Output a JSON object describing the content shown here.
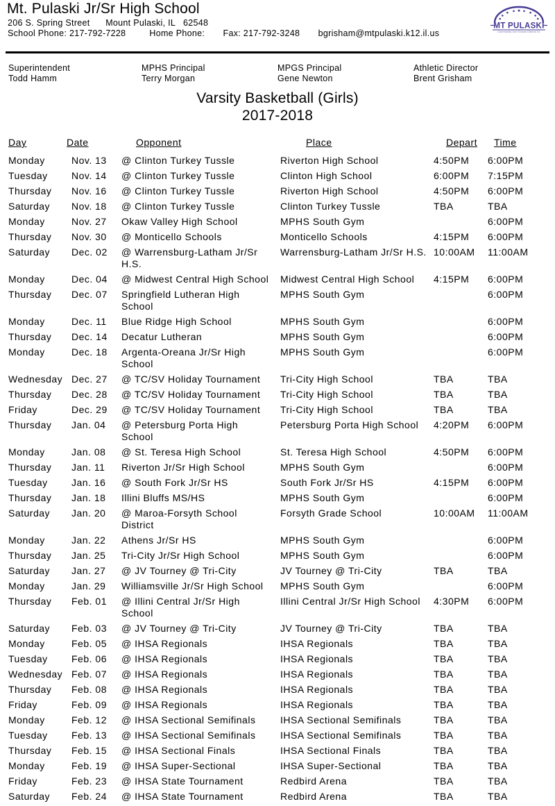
{
  "school": {
    "name": "Mt. Pulaski Jr/Sr High School",
    "address_line": "206 S. Spring Street      Mount Pulaski, IL   62548",
    "contact_line": "School Phone: 217-792-7228         Home Phone:       Fax: 217-792-3248       bgrisham@mtpulaski.k12.il.us",
    "logo": {
      "text": "MT PULASKI",
      "subtext": "Community Unit School District 23",
      "color": "#453a93"
    }
  },
  "staff": [
    {
      "title": "Superintendent",
      "name": "Todd Hamm"
    },
    {
      "title": "MPHS Principal",
      "name": "Terry Morgan"
    },
    {
      "title": "MPGS Principal",
      "name": "Gene Newton"
    },
    {
      "title": "Athletic Director",
      "name": "Brent Grisham"
    }
  ],
  "schedule": {
    "title": "Varsity Basketball (Girls)",
    "season": "2017-2018",
    "columns": [
      "Day",
      "Date",
      "Opponent",
      "Place",
      "Depart",
      "Time"
    ],
    "rows": [
      {
        "day": "Monday",
        "date": "Nov. 13",
        "opponent": "@ Clinton Turkey Tussle",
        "place": "Riverton High School",
        "depart": "4:50PM",
        "time": "6:00PM"
      },
      {
        "day": "Tuesday",
        "date": "Nov. 14",
        "opponent": "@ Clinton Turkey Tussle",
        "place": "Clinton High School",
        "depart": "6:00PM",
        "time": "7:15PM"
      },
      {
        "day": "Thursday",
        "date": "Nov. 16",
        "opponent": "@ Clinton Turkey Tussle",
        "place": "Riverton High School",
        "depart": "4:50PM",
        "time": "6:00PM"
      },
      {
        "day": "Saturday",
        "date": "Nov. 18",
        "opponent": "@ Clinton Turkey Tussle",
        "place": "Clinton Turkey Tussle",
        "depart": "TBA",
        "time": "TBA"
      },
      {
        "day": "Monday",
        "date": "Nov. 27",
        "opponent": "Okaw Valley High School",
        "place": "MPHS South Gym",
        "depart": "",
        "time": "6:00PM"
      },
      {
        "day": "Thursday",
        "date": "Nov. 30",
        "opponent": "@ Monticello Schools",
        "place": "Monticello Schools",
        "depart": "4:15PM",
        "time": "6:00PM"
      },
      {
        "day": "Saturday",
        "date": "Dec. 02",
        "opponent": "@ Warrensburg-Latham Jr/Sr\nH.S.",
        "place": "Warrensburg-Latham Jr/Sr H.S.",
        "depart": "10:00AM",
        "time": "11:00AM"
      },
      {
        "day": "Monday",
        "date": "Dec. 04",
        "opponent": "@ Midwest Central High School",
        "place": "Midwest Central High School",
        "depart": "4:15PM",
        "time": "6:00PM"
      },
      {
        "day": "Thursday",
        "date": "Dec. 07",
        "opponent": "Springfield Lutheran High\nSchool",
        "place": "MPHS South Gym",
        "depart": "",
        "time": "6:00PM"
      },
      {
        "day": "Monday",
        "date": "Dec. 11",
        "opponent": "Blue Ridge High School",
        "place": "MPHS South Gym",
        "depart": "",
        "time": "6:00PM"
      },
      {
        "day": "Thursday",
        "date": "Dec. 14",
        "opponent": "Decatur Lutheran",
        "place": "MPHS South Gym",
        "depart": "",
        "time": "6:00PM"
      },
      {
        "day": "Monday",
        "date": "Dec. 18",
        "opponent": "Argenta-Oreana Jr/Sr High\nSchool",
        "place": "MPHS South Gym",
        "depart": "",
        "time": "6:00PM"
      },
      {
        "day": "Wednesday",
        "date": "Dec. 27",
        "opponent": "@ TC/SV Holiday Tournament",
        "place": "Tri-City High School",
        "depart": "TBA",
        "time": "TBA"
      },
      {
        "day": "Thursday",
        "date": "Dec. 28",
        "opponent": "@ TC/SV Holiday Tournament",
        "place": "Tri-City High School",
        "depart": "TBA",
        "time": "TBA"
      },
      {
        "day": "Friday",
        "date": "Dec. 29",
        "opponent": "@ TC/SV Holiday Tournament",
        "place": "Tri-City High School",
        "depart": "TBA",
        "time": "TBA"
      },
      {
        "day": "Thursday",
        "date": "Jan. 04",
        "opponent": "@ Petersburg Porta High\nSchool",
        "place": "Petersburg Porta High School",
        "depart": "4:20PM",
        "time": "6:00PM"
      },
      {
        "day": "Monday",
        "date": "Jan. 08",
        "opponent": "@ St. Teresa High School",
        "place": "St. Teresa High School",
        "depart": "4:50PM",
        "time": "6:00PM"
      },
      {
        "day": "Thursday",
        "date": "Jan. 11",
        "opponent": "Riverton Jr/Sr High School",
        "place": "MPHS South Gym",
        "depart": "",
        "time": "6:00PM"
      },
      {
        "day": "Tuesday",
        "date": "Jan. 16",
        "opponent": "@ South Fork Jr/Sr HS",
        "place": "South Fork Jr/Sr HS",
        "depart": "4:15PM",
        "time": "6:00PM"
      },
      {
        "day": "Thursday",
        "date": "Jan. 18",
        "opponent": "Illini Bluffs MS/HS",
        "place": "MPHS South Gym",
        "depart": "",
        "time": "6:00PM"
      },
      {
        "day": "Saturday",
        "date": "Jan. 20",
        "opponent": "@ Maroa-Forsyth School\nDistrict",
        "place": "Forsyth Grade School",
        "depart": "10:00AM",
        "time": "11:00AM"
      },
      {
        "day": "Monday",
        "date": "Jan. 22",
        "opponent": "Athens Jr/Sr HS",
        "place": "MPHS South Gym",
        "depart": "",
        "time": "6:00PM"
      },
      {
        "day": "Thursday",
        "date": "Jan. 25",
        "opponent": "Tri-City Jr/Sr High School",
        "place": "MPHS South Gym",
        "depart": "",
        "time": "6:00PM"
      },
      {
        "day": "Saturday",
        "date": "Jan. 27",
        "opponent": "@ JV Tourney @ Tri-City",
        "place": "JV Tourney @ Tri-City",
        "depart": "TBA",
        "time": "TBA"
      },
      {
        "day": "Monday",
        "date": "Jan. 29",
        "opponent": "Williamsville Jr/Sr High School",
        "place": "MPHS South Gym",
        "depart": "",
        "time": "6:00PM"
      },
      {
        "day": "Thursday",
        "date": "Feb. 01",
        "opponent": "@ Illini Central Jr/Sr High\nSchool",
        "place": "Illini Central Jr/Sr High School",
        "depart": "4:30PM",
        "time": "6:00PM"
      },
      {
        "day": "Saturday",
        "date": "Feb. 03",
        "opponent": "@ JV Tourney @ Tri-City",
        "place": "JV Tourney @ Tri-City",
        "depart": "TBA",
        "time": "TBA"
      },
      {
        "day": "Monday",
        "date": "Feb. 05",
        "opponent": "@ IHSA Regionals",
        "place": "IHSA Regionals",
        "depart": "TBA",
        "time": "TBA"
      },
      {
        "day": "Tuesday",
        "date": "Feb. 06",
        "opponent": "@ IHSA Regionals",
        "place": "IHSA Regionals",
        "depart": "TBA",
        "time": "TBA"
      },
      {
        "day": "Wednesday",
        "date": "Feb. 07",
        "opponent": "@ IHSA Regionals",
        "place": "IHSA Regionals",
        "depart": "TBA",
        "time": "TBA"
      },
      {
        "day": "Thursday",
        "date": "Feb. 08",
        "opponent": "@ IHSA Regionals",
        "place": "IHSA Regionals",
        "depart": "TBA",
        "time": "TBA"
      },
      {
        "day": "Friday",
        "date": "Feb. 09",
        "opponent": "@ IHSA Regionals",
        "place": "IHSA Regionals",
        "depart": "TBA",
        "time": "TBA"
      },
      {
        "day": "Monday",
        "date": "Feb. 12",
        "opponent": "@ IHSA Sectional Semifinals",
        "place": "IHSA Sectional Semifinals",
        "depart": "TBA",
        "time": "TBA"
      },
      {
        "day": "Tuesday",
        "date": "Feb. 13",
        "opponent": "@ IHSA Sectional Semifinals",
        "place": "IHSA Sectional Semifinals",
        "depart": "TBA",
        "time": "TBA"
      },
      {
        "day": "Thursday",
        "date": "Feb. 15",
        "opponent": "@ IHSA Sectional Finals",
        "place": "IHSA Sectional Finals",
        "depart": "TBA",
        "time": "TBA"
      },
      {
        "day": "Monday",
        "date": "Feb. 19",
        "opponent": "@ IHSA Super-Sectional",
        "place": "IHSA Super-Sectional",
        "depart": "TBA",
        "time": "TBA"
      },
      {
        "day": "Friday",
        "date": "Feb. 23",
        "opponent": "@ IHSA State Tournament",
        "place": "Redbird Arena",
        "depart": "TBA",
        "time": "TBA"
      },
      {
        "day": "Saturday",
        "date": "Feb. 24",
        "opponent": "@ IHSA State Tournament",
        "place": "Redbird Arena",
        "depart": "TBA",
        "time": "TBA"
      }
    ]
  }
}
